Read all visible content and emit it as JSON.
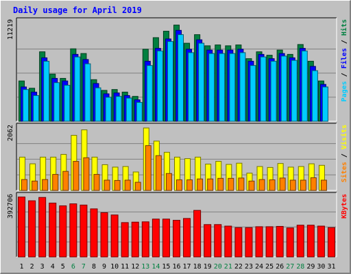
{
  "chart_data": {
    "type": "bar",
    "title": "Daily usage for April 2019",
    "categories": [
      "1",
      "2",
      "3",
      "4",
      "5",
      "6",
      "7",
      "8",
      "9",
      "10",
      "11",
      "12",
      "13",
      "14",
      "15",
      "16",
      "17",
      "18",
      "19",
      "20",
      "21",
      "22",
      "23",
      "24",
      "25",
      "26",
      "27",
      "28",
      "29",
      "30",
      "31"
    ],
    "weekend_days": [
      "6",
      "7",
      "13",
      "14",
      "20",
      "21",
      "27",
      "28"
    ],
    "panels": [
      {
        "id": "pages-files-hits",
        "y_max_label": "11219",
        "ylim": [
          0,
          11219
        ],
        "legend": [
          "Pages",
          "Files",
          "Hits"
        ],
        "series": [
          {
            "name": "Hits",
            "color": "#008040",
            "values": [
              4700,
              3850,
              8100,
              5500,
              5000,
              8450,
              7900,
              4850,
              3600,
              3700,
              3400,
              2900,
              8400,
              9750,
              10500,
              11219,
              9100,
              10100,
              8800,
              8900,
              8800,
              8900,
              7300,
              8100,
              7700,
              8300,
              7800,
              8950,
              7000,
              4700,
              0
            ]
          },
          {
            "name": "Files",
            "color": "#0000ff",
            "values": [
              4000,
              3400,
              7400,
              5000,
              4700,
              7800,
              7200,
              4400,
              3200,
              3300,
              3000,
              2500,
              7000,
              8500,
              9600,
              10600,
              8400,
              9500,
              8300,
              8300,
              8300,
              8400,
              7000,
              7800,
              7300,
              7900,
              7400,
              8500,
              6400,
              4300,
              0
            ]
          },
          {
            "name": "Pages",
            "color": "#00ccff",
            "values": [
              3700,
              3000,
              7000,
              4500,
              4200,
              7500,
              6700,
              3900,
              2800,
              2900,
              2700,
              2200,
              6500,
              8200,
              9300,
              10100,
              8000,
              9100,
              7900,
              7900,
              7900,
              8000,
              6500,
              7500,
              7000,
              7600,
              7100,
              8200,
              5900,
              4000,
              0
            ]
          }
        ]
      },
      {
        "id": "sites-visits",
        "y_max_label": "2062",
        "ylim": [
          0,
          2062
        ],
        "legend": [
          "Sites",
          "Visits"
        ],
        "series": [
          {
            "name": "Visits",
            "color": "#ffff00",
            "values": [
              1100,
              880,
              1100,
              1100,
              1190,
              1820,
              2000,
              1100,
              850,
              770,
              790,
              610,
              2062,
              1630,
              1260,
              1100,
              1050,
              1100,
              870,
              960,
              860,
              900,
              570,
              790,
              760,
              890,
              770,
              790,
              880,
              830,
              0
            ]
          },
          {
            "name": "Sites",
            "color": "#ff8000",
            "values": [
              360,
              310,
              360,
              530,
              630,
              960,
              1080,
              530,
              340,
              330,
              340,
              270,
              1480,
              1150,
              560,
              350,
              350,
              380,
              380,
              400,
              400,
              410,
              310,
              360,
              350,
              410,
              340,
              340,
              420,
              340,
              0
            ]
          }
        ]
      },
      {
        "id": "kbytes",
        "y_max_label": "392706",
        "ylim": [
          0,
          392706
        ],
        "legend": [
          "KBytes"
        ],
        "series": [
          {
            "name": "KBytes",
            "color": "#ff0000",
            "values": [
              392706,
              368000,
              390000,
              353000,
              335000,
              348000,
              340000,
              315000,
              290000,
              275000,
              225000,
              228000,
              230000,
              248000,
              248000,
              240000,
              252000,
              305000,
              212000,
              212000,
              202000,
              192000,
              192000,
              198000,
              198000,
              200000,
              190000,
              208000,
              208000,
              202000,
              192000
            ]
          }
        ]
      }
    ],
    "colors": {
      "title": "#0000ff",
      "axis_label": "#000000",
      "weekend_label": "#008040",
      "background": "#c0c0c0",
      "plot_background": "#c0c0c0",
      "grid": "#808080"
    }
  }
}
